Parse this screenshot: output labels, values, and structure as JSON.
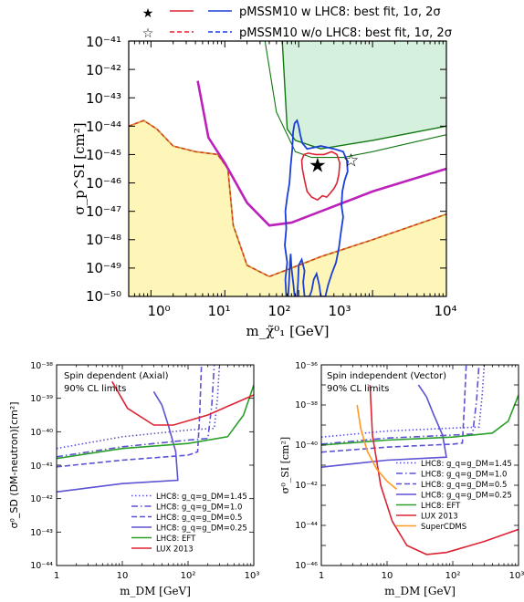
{
  "chart_data": [
    {
      "type": "line",
      "xscale": "log",
      "yscale": "log",
      "xlim": [
        0.5,
        10000
      ],
      "ylim": [
        1e-50,
        1e-41
      ],
      "xlabel": "m_χ̃⁰₁ [GeV]",
      "ylabel": "σ_p^SI [cm²]",
      "x_ticks": [
        "10⁰",
        "10¹",
        "10²",
        "10³",
        "10⁴"
      ],
      "y_ticks": [
        "10⁻⁵⁰",
        "10⁻⁴⁹",
        "10⁻⁴⁸",
        "10⁻⁴⁷",
        "10⁻⁴⁶",
        "10⁻⁴⁵",
        "10⁻⁴⁴",
        "10⁻⁴³",
        "10⁻⁴²",
        "10⁻⁴¹"
      ],
      "legend": [
        {
          "label": "pMSSM10 w LHC8: best fit, 1σ, 2σ",
          "style": "solid"
        },
        {
          "label": "pMSSM10 w/o LHC8: best fit, 1σ, 2σ",
          "style": "dashed"
        }
      ],
      "series": [
        {
          "color": "#cc9933",
          "style": "solid+dashed",
          "points": [
            [
              0.5,
              -44.0
            ],
            [
              0.8,
              -43.8
            ],
            [
              1.2,
              -44.1
            ],
            [
              2,
              -44.7
            ],
            [
              4,
              -44.9
            ],
            [
              8,
              -45.0
            ],
            [
              11,
              -45.5
            ],
            [
              13,
              -47.5
            ],
            [
              20,
              -48.9
            ],
            [
              40,
              -49.3
            ],
            [
              80,
              -49.0
            ],
            [
              200,
              -48.6
            ],
            [
              1000,
              -48.0
            ],
            [
              10000,
              -47.1
            ]
          ]
        },
        {
          "color": "#bb22bb",
          "style": "solid",
          "points": [
            [
              4.3,
              -42.4
            ],
            [
              6,
              -44.4
            ],
            [
              10,
              -45.3
            ],
            [
              20,
              -46.7
            ],
            [
              40,
              -47.5
            ],
            [
              80,
              -47.4
            ],
            [
              200,
              -47.0
            ],
            [
              1000,
              -46.3
            ],
            [
              10000,
              -45.5
            ]
          ]
        },
        {
          "color": "#117711",
          "style": "solid",
          "points": [
            [
              60,
              -41.0
            ],
            [
              70,
              -44.1
            ],
            [
              90,
              -44.5
            ],
            [
              200,
              -44.8
            ],
            [
              1000,
              -44.5
            ],
            [
              10000,
              -44.0
            ]
          ]
        },
        {
          "color": "#117711",
          "style": "solid",
          "points": [
            [
              35,
              -41.0
            ],
            [
              50,
              -43.5
            ],
            [
              90,
              -44.9
            ],
            [
              150,
              -45.1
            ],
            [
              400,
              -45.1
            ],
            [
              1000,
              -44.9
            ],
            [
              10000,
              -44.3
            ]
          ]
        }
      ],
      "markers": [
        {
          "name": "best fit w LHC8",
          "x": 180,
          "y": -45.4,
          "style": "filled-star",
          "color": "#117711"
        },
        {
          "name": "best fit w/o LHC8",
          "x": 510,
          "y": -45.2,
          "style": "open-star",
          "color": "#117711"
        }
      ]
    },
    {
      "type": "line",
      "xscale": "log",
      "yscale": "log",
      "xlim": [
        1,
        1000
      ],
      "ylim": [
        1e-44,
        1e-38
      ],
      "title": "Spin dependent (Axial)",
      "subtitle": "90% CL limits",
      "xlabel": "m_DM [GeV]",
      "ylabel": "σ⁰_SD (DM-neutron)[cm²]",
      "x_ticks": [
        "1",
        "10",
        "10²",
        "10³"
      ],
      "y_ticks": [
        "10⁻⁴⁴",
        "10⁻⁴³",
        "10⁻⁴²",
        "10⁻⁴¹",
        "10⁻⁴⁰",
        "10⁻³⁹",
        "10⁻³⁸"
      ],
      "series": [
        {
          "name": "LHC8: g_q=g_DM=1.45",
          "color": "#5b52d4",
          "style": "dotted",
          "points": [
            [
              1,
              -40.5
            ],
            [
              10,
              -40.15
            ],
            [
              100,
              -39.95
            ],
            [
              250,
              -39.9
            ],
            [
              280,
              -39.0
            ],
            [
              300,
              -38.0
            ]
          ]
        },
        {
          "name": "LHC8: g_q=g_DM=1.0",
          "color": "#5b52d4",
          "style": "dashdot",
          "points": [
            [
              1,
              -40.75
            ],
            [
              10,
              -40.45
            ],
            [
              100,
              -40.25
            ],
            [
              200,
              -40.2
            ],
            [
              230,
              -39.2
            ],
            [
              250,
              -38.0
            ]
          ]
        },
        {
          "name": "LHC8: g_q=g_DM=0.5",
          "color": "#5b52d4",
          "style": "dashed",
          "points": [
            [
              1,
              -41.05
            ],
            [
              10,
              -40.85
            ],
            [
              100,
              -40.7
            ],
            [
              140,
              -40.6
            ],
            [
              150,
              -39.5
            ],
            [
              160,
              -38.0
            ]
          ]
        },
        {
          "name": "LHC8: g_q=g_DM=0.25",
          "color": "#5b52d4",
          "style": "solid",
          "points": [
            [
              1,
              -41.8
            ],
            [
              10,
              -41.55
            ],
            [
              70,
              -41.45
            ],
            [
              65,
              -40.6
            ],
            [
              50,
              -39.8
            ],
            [
              40,
              -39.2
            ],
            [
              30,
              -38.8
            ]
          ]
        },
        {
          "name": "LHC8: EFT",
          "color": "#2aa02a",
          "style": "solid",
          "points": [
            [
              1,
              -40.8
            ],
            [
              10,
              -40.5
            ],
            [
              100,
              -40.35
            ],
            [
              400,
              -40.15
            ],
            [
              700,
              -39.5
            ],
            [
              1000,
              -38.6
            ]
          ]
        },
        {
          "name": "LUX 2013",
          "color": "#dd2233",
          "style": "solid",
          "points": [
            [
              7,
              -38.5
            ],
            [
              12,
              -39.3
            ],
            [
              30,
              -39.8
            ],
            [
              60,
              -39.8
            ],
            [
              200,
              -39.5
            ],
            [
              1000,
              -38.9
            ]
          ]
        }
      ]
    },
    {
      "type": "line",
      "xscale": "log",
      "yscale": "log",
      "xlim": [
        1,
        1000
      ],
      "ylim": [
        1e-46,
        1e-36
      ],
      "title": "Spin independent (Vector)",
      "subtitle": "90% CL limits",
      "xlabel": "m_DM [GeV]",
      "ylabel": "σ⁰_SI [cm²]",
      "x_ticks": [
        "1",
        "10",
        "10²",
        "10³"
      ],
      "y_ticks": [
        "10⁻⁴⁶",
        "10⁻⁴⁴",
        "10⁻⁴²",
        "10⁻⁴⁰",
        "10⁻³⁸",
        "10⁻³⁶"
      ],
      "series": [
        {
          "name": "LHC8: g_q=g_DM=1.45",
          "color": "#5b52d4",
          "style": "dotted",
          "points": [
            [
              1,
              -39.6
            ],
            [
              10,
              -39.3
            ],
            [
              100,
              -39.15
            ],
            [
              250,
              -39.1
            ],
            [
              280,
              -37.5
            ],
            [
              300,
              -36.0
            ]
          ]
        },
        {
          "name": "LHC8: g_q=g_DM=1.0",
          "color": "#5b52d4",
          "style": "dashdot",
          "points": [
            [
              1,
              -39.95
            ],
            [
              10,
              -39.65
            ],
            [
              100,
              -39.5
            ],
            [
              200,
              -39.45
            ],
            [
              230,
              -37.8
            ],
            [
              250,
              -36.0
            ]
          ]
        },
        {
          "name": "LHC8: g_q=g_DM=0.5",
          "color": "#5b52d4",
          "style": "dashed",
          "points": [
            [
              1,
              -40.35
            ],
            [
              10,
              -40.1
            ],
            [
              100,
              -39.95
            ],
            [
              140,
              -39.9
            ],
            [
              150,
              -38.0
            ],
            [
              160,
              -36.0
            ]
          ]
        },
        {
          "name": "LHC8: g_q=g_DM=0.25",
          "color": "#5b52d4",
          "style": "solid",
          "points": [
            [
              1,
              -41.1
            ],
            [
              10,
              -40.75
            ],
            [
              80,
              -40.6
            ],
            [
              70,
              -39.5
            ],
            [
              50,
              -38.4
            ],
            [
              40,
              -37.6
            ],
            [
              30,
              -37.0
            ]
          ]
        },
        {
          "name": "LHC8: EFT",
          "color": "#2aa02a",
          "style": "solid",
          "points": [
            [
              1,
              -40.0
            ],
            [
              10,
              -39.75
            ],
            [
              100,
              -39.6
            ],
            [
              400,
              -39.4
            ],
            [
              700,
              -38.8
            ],
            [
              1000,
              -37.5
            ]
          ]
        },
        {
          "name": "LUX 2013",
          "color": "#dd2233",
          "style": "solid",
          "points": [
            [
              5.5,
              -37.0
            ],
            [
              6,
              -39.5
            ],
            [
              8,
              -42.0
            ],
            [
              12,
              -43.8
            ],
            [
              20,
              -45.0
            ],
            [
              40,
              -45.45
            ],
            [
              80,
              -45.35
            ],
            [
              300,
              -44.8
            ],
            [
              1000,
              -44.2
            ]
          ]
        },
        {
          "name": "SuperCDMS",
          "color": "#ff9922",
          "style": "solid",
          "points": [
            [
              3.5,
              -38.0
            ],
            [
              4,
              -39.2
            ],
            [
              5,
              -40.3
            ],
            [
              7,
              -41.2
            ],
            [
              10,
              -41.8
            ],
            [
              14,
              -42.2
            ]
          ]
        }
      ]
    }
  ]
}
